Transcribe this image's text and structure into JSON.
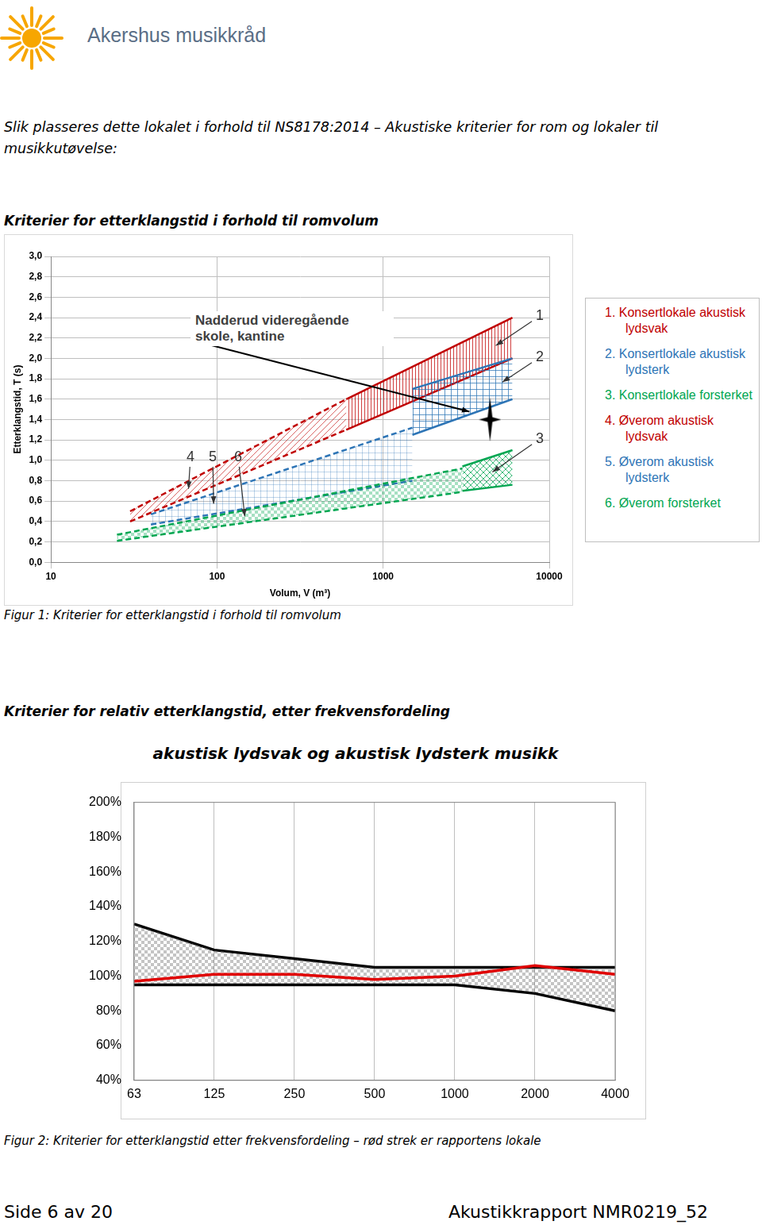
{
  "header": {
    "logo_text": "Akershus musikkråd"
  },
  "intro": "Slik plasseres dette lokalet i forhold til NS8178:2014 – Akustiske kriterier for rom og lokaler til musikkutøvelse:",
  "sections": [
    {
      "heading": "Kriterier for etterklangstid i forhold til romvolum",
      "caption": "Figur 1: Kriterier for etterklangstid i forhold til romvolum"
    },
    {
      "heading": "Kriterier for relativ etterklangstid, etter frekvensfordeling",
      "caption": "Figur 2: Kriterier for etterklangstid etter frekvensfordeling – rød strek er rapportens lokale"
    }
  ],
  "chart_data": [
    {
      "type": "range_area",
      "x_label": "Volum, V (m³)",
      "y_label": "Etterklangstid, T (s)",
      "log": "x",
      "grid": true,
      "legend": "right",
      "xlim": [
        10,
        10000
      ],
      "xticks": [
        10,
        100,
        1000,
        10000
      ],
      "ylim": [
        0,
        3
      ],
      "yticks": [
        {
          "value": 0,
          "label": "0,0"
        },
        {
          "value": 0.2,
          "label": "0,2"
        },
        {
          "value": 0.4,
          "label": "0,4"
        },
        {
          "value": 0.6,
          "label": "0,6"
        },
        {
          "value": 0.8,
          "label": "0,8"
        },
        {
          "value": 1,
          "label": "1,0"
        },
        {
          "value": 1.2,
          "label": "1,2"
        },
        {
          "value": 1.4,
          "label": "1,4"
        },
        {
          "value": 1.6,
          "label": "1,6"
        },
        {
          "value": 1.8,
          "label": "1,8"
        },
        {
          "value": 2,
          "label": "2,0"
        },
        {
          "value": 2.2,
          "label": "2,2"
        },
        {
          "value": 2.4,
          "label": "2,4"
        },
        {
          "value": 2.6,
          "label": "2,6"
        },
        {
          "value": 2.8,
          "label": "2,8"
        },
        {
          "value": 3,
          "label": "3,0"
        }
      ],
      "series": [
        {
          "name": "1. Konsertlokale akustisk lydsvak",
          "label": "1",
          "color": "#c00000",
          "line_style": "solid",
          "x": [
            600,
            6000
          ],
          "lower": [
            1.3,
            2.0
          ],
          "upper": [
            1.6,
            2.4
          ]
        },
        {
          "name": "2. Konsertlokale akustisk lydsterk",
          "label": "2",
          "color": "#2e75b6",
          "line_style": "solid",
          "x": [
            1500,
            6000
          ],
          "lower": [
            1.25,
            1.6
          ],
          "upper": [
            1.7,
            2.0
          ]
        },
        {
          "name": "3. Konsertlokale forsterket",
          "label": "3",
          "color": "#00a651",
          "line_style": "solid",
          "x": [
            3000,
            6000
          ],
          "lower": [
            0.7,
            0.76
          ],
          "upper": [
            0.94,
            1.1
          ]
        },
        {
          "name": "4. Øverom akustisk lydsvak",
          "label": "4",
          "color": "#c00000",
          "line_style": "dashed",
          "x": [
            30,
            600
          ],
          "lower": [
            0.4,
            1.3
          ],
          "upper": [
            0.5,
            1.6
          ]
        },
        {
          "name": "5. Øverom akustisk lydsterk",
          "label": "5",
          "color": "#2e75b6",
          "line_style": "dashed",
          "x": [
            40,
            1500
          ],
          "lower": [
            0.37,
            0.8
          ],
          "upper": [
            0.47,
            1.32
          ]
        },
        {
          "name": "6. Øverom forsterket",
          "label": "6",
          "color": "#00a651",
          "line_style": "dashed",
          "x": [
            25,
            3000
          ],
          "lower": [
            0.21,
            0.69
          ],
          "upper": [
            0.27,
            0.92
          ]
        }
      ],
      "annotations": [
        {
          "text": "Nadderud videregående skole, kantine",
          "x": 4400,
          "y": 1.4,
          "marker": "star",
          "color": "#000000"
        }
      ]
    },
    {
      "type": "line",
      "title": "akustisk lydsvak og akustisk lydsterk musikk",
      "grid": "x",
      "categories": [
        "63",
        "125",
        "250",
        "500",
        "1000",
        "2000",
        "4000"
      ],
      "ylim": [
        40,
        200
      ],
      "yticks": [
        {
          "value": 40,
          "label": "40%"
        },
        {
          "value": 60,
          "label": "60%"
        },
        {
          "value": 80,
          "label": "80%"
        },
        {
          "value": 100,
          "label": "100%"
        },
        {
          "value": 120,
          "label": "120%"
        },
        {
          "value": 140,
          "label": "140%"
        },
        {
          "value": 160,
          "label": "160%"
        },
        {
          "value": 180,
          "label": "180%"
        },
        {
          "value": 200,
          "label": "200%"
        }
      ],
      "series": [
        {
          "color": "#000000",
          "values": [
            130,
            115,
            110,
            105,
            105,
            105,
            105
          ]
        },
        {
          "color": "#000000",
          "values": [
            95,
            95,
            95,
            95,
            95,
            90,
            80
          ]
        },
        {
          "color": "#e00000",
          "values": [
            97,
            101,
            101,
            98,
            100,
            106,
            101
          ]
        }
      ]
    }
  ],
  "footer": {
    "left": "Side 6 av 20",
    "right": "Akustikkrapport NMR0219_52"
  }
}
